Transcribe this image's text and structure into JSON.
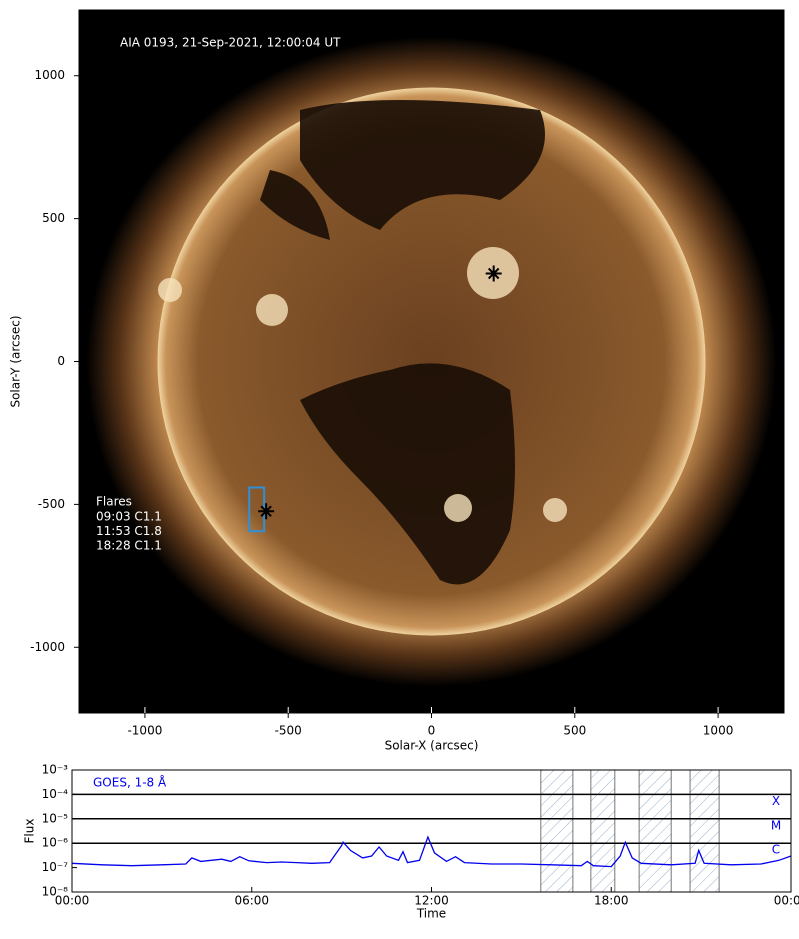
{
  "chart_data": [
    {
      "type": "image",
      "title": "AIA 0193, 21-Sep-2021, 12:00:04 UT",
      "xlabel": "Solar-X (arcsec)",
      "ylabel": "Solar-Y (arcsec)",
      "xlim": [
        -1230,
        1230
      ],
      "ylim": [
        -1230,
        1230
      ],
      "xticks": [
        -1000,
        -500,
        0,
        500,
        1000
      ],
      "yticks": [
        -1000,
        -500,
        0,
        500,
        1000
      ],
      "flare_list": {
        "title": "Flares",
        "entries": [
          "09:03 C1.1",
          "11:53 C1.8",
          "18:28 C1.1"
        ]
      },
      "markers": [
        {
          "x": 217,
          "y": 308
        },
        {
          "x": -577,
          "y": -524
        }
      ],
      "boxes": [
        {
          "x": [
            -636,
            -584
          ],
          "y": [
            -594,
            -441
          ],
          "color": "#2f8fd8"
        }
      ]
    },
    {
      "type": "line",
      "label": "GOES, 1-8 Å",
      "xlabel": "Time",
      "ylabel": "Flux",
      "color": "#0000ee",
      "log_y": true,
      "xlim": [
        0,
        24
      ],
      "xticks": [
        {
          "value": 0,
          "label": "00:00"
        },
        {
          "value": 6,
          "label": "06:00"
        },
        {
          "value": 12,
          "label": "12:00"
        },
        {
          "value": 18,
          "label": "18:00"
        },
        {
          "value": 24,
          "label": "00:00"
        }
      ],
      "ylim": [
        1e-08,
        0.001
      ],
      "yticks": [
        {
          "value": 1e-08,
          "label": "10⁻⁸"
        },
        {
          "value": 1e-07,
          "label": "10⁻⁷"
        },
        {
          "value": 1e-06,
          "label": "10⁻⁶"
        },
        {
          "value": 1e-05,
          "label": "10⁻⁵"
        },
        {
          "value": 0.0001,
          "label": "10⁻⁴"
        },
        {
          "value": 0.001,
          "label": "10⁻³"
        }
      ],
      "classes": [
        {
          "value": 0.0001,
          "label": "X"
        },
        {
          "value": 1e-05,
          "label": "M"
        },
        {
          "value": 1e-06,
          "label": "C"
        }
      ],
      "shaded": [
        [
          15.65,
          16.72
        ],
        [
          17.32,
          18.12
        ],
        [
          18.93,
          20.0
        ],
        [
          20.63,
          21.6
        ]
      ],
      "x": [
        0,
        1,
        2,
        3,
        3.8,
        4.0,
        4.3,
        5.0,
        5.3,
        5.6,
        5.9,
        6.5,
        7.0,
        7.5,
        8.0,
        8.6,
        9.0,
        9.05,
        9.3,
        9.7,
        10.0,
        10.25,
        10.5,
        10.9,
        11.05,
        11.2,
        11.6,
        11.88,
        12.1,
        12.5,
        12.8,
        13.1,
        14,
        15,
        16,
        17,
        17.2,
        17.4,
        18,
        18.3,
        18.47,
        18.7,
        19.0,
        20,
        20.8,
        20.92,
        21.1,
        22,
        23,
        23.6,
        24
      ],
      "values": [
        1.5e-07,
        1.3e-07,
        1.2e-07,
        1.3e-07,
        1.4e-07,
        2.5e-07,
        1.8e-07,
        2.2e-07,
        1.8e-07,
        2.8e-07,
        1.9e-07,
        1.6e-07,
        1.7e-07,
        1.6e-07,
        1.5e-07,
        1.6e-07,
        8e-07,
        1.1e-06,
        5e-07,
        2.5e-07,
        3e-07,
        7e-07,
        3e-07,
        2e-07,
        4.5e-07,
        1.6e-07,
        2e-07,
        1.8e-06,
        4e-07,
        1.8e-07,
        2.8e-07,
        1.6e-07,
        1.4e-07,
        1.4e-07,
        1.3e-07,
        1.2e-07,
        1.8e-07,
        1.2e-07,
        1.1e-07,
        3e-07,
        1.1e-06,
        2.5e-07,
        1.5e-07,
        1.3e-07,
        1.5e-07,
        5e-07,
        1.5e-07,
        1.3e-07,
        1.4e-07,
        2e-07,
        3e-07
      ]
    }
  ]
}
